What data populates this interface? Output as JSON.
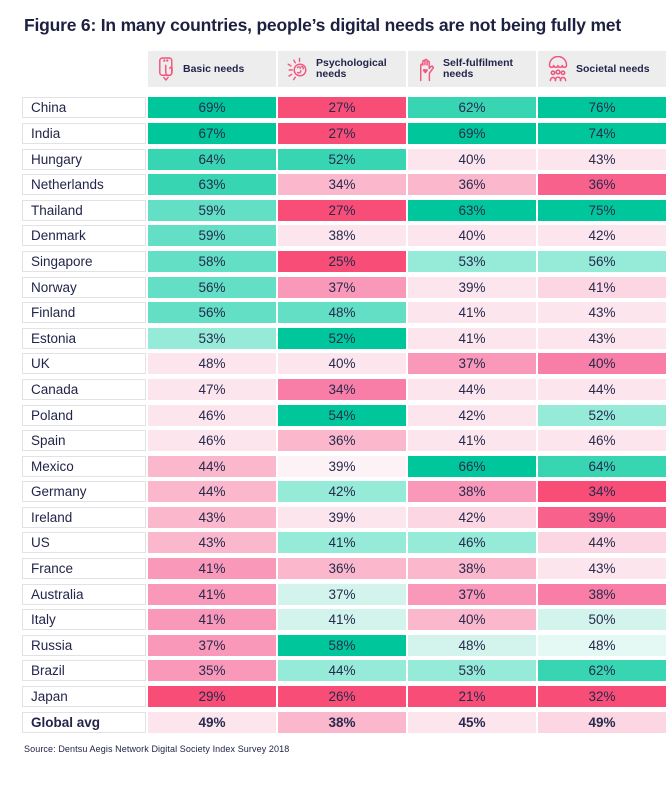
{
  "title": "Figure 6: In many countries, people’s digital needs are not being fully met",
  "source": "Source: Dentsu Aegis Network Digital Society Index Survey 2018",
  "columns": [
    {
      "id": "basic-needs",
      "label": "Basic needs",
      "icon": "phone-hand-icon"
    },
    {
      "id": "psychological-needs",
      "label": "Psychological needs",
      "icon": "brain-burst-icon"
    },
    {
      "id": "self-fulfilment-needs",
      "label": "Self-fulfilment needs",
      "icon": "hand-heart-icon"
    },
    {
      "id": "societal-needs",
      "label": "Societal needs",
      "icon": "people-group-icon"
    }
  ],
  "colors": {
    "t5": "#00c79b",
    "t4": "#38d5b3",
    "t3": "#62dfc5",
    "t2": "#95ead8",
    "t1": "#d3f4ec",
    "t0": "#e4f9f4",
    "p6": "#f74d77",
    "p5": "#f8618c",
    "p4": "#f87ea7",
    "p3": "#f998b9",
    "p2": "#fbb7cc",
    "p1": "#fcd6e2",
    "p0": "#fde5ed",
    "pw": "#fdf2f5"
  },
  "accent_pink": "#f2547e",
  "header_bg": "#ededed",
  "rows": [
    {
      "label": "China",
      "cells": [
        {
          "value": "69%",
          "color": "t5"
        },
        {
          "value": "27%",
          "color": "p6"
        },
        {
          "value": "62%",
          "color": "t4"
        },
        {
          "value": "76%",
          "color": "t5"
        }
      ]
    },
    {
      "label": "India",
      "cells": [
        {
          "value": "67%",
          "color": "t5"
        },
        {
          "value": "27%",
          "color": "p6"
        },
        {
          "value": "69%",
          "color": "t5"
        },
        {
          "value": "74%",
          "color": "t5"
        }
      ]
    },
    {
      "label": "Hungary",
      "cells": [
        {
          "value": "64%",
          "color": "t4"
        },
        {
          "value": "52%",
          "color": "t4"
        },
        {
          "value": "40%",
          "color": "p0"
        },
        {
          "value": "43%",
          "color": "p0"
        }
      ]
    },
    {
      "label": "Netherlands",
      "cells": [
        {
          "value": "63%",
          "color": "t4"
        },
        {
          "value": "34%",
          "color": "p2"
        },
        {
          "value": "36%",
          "color": "p2"
        },
        {
          "value": "36%",
          "color": "p5"
        }
      ]
    },
    {
      "label": "Thailand",
      "cells": [
        {
          "value": "59%",
          "color": "t3"
        },
        {
          "value": "27%",
          "color": "p6"
        },
        {
          "value": "63%",
          "color": "t5"
        },
        {
          "value": "75%",
          "color": "t5"
        }
      ]
    },
    {
      "label": "Denmark",
      "cells": [
        {
          "value": "59%",
          "color": "t3"
        },
        {
          "value": "38%",
          "color": "p0"
        },
        {
          "value": "40%",
          "color": "p0"
        },
        {
          "value": "42%",
          "color": "p0"
        }
      ]
    },
    {
      "label": "Singapore",
      "cells": [
        {
          "value": "58%",
          "color": "t3"
        },
        {
          "value": "25%",
          "color": "p6"
        },
        {
          "value": "53%",
          "color": "t2"
        },
        {
          "value": "56%",
          "color": "t2"
        }
      ]
    },
    {
      "label": "Norway",
      "cells": [
        {
          "value": "56%",
          "color": "t3"
        },
        {
          "value": "37%",
          "color": "p3"
        },
        {
          "value": "39%",
          "color": "p0"
        },
        {
          "value": "41%",
          "color": "p1"
        }
      ]
    },
    {
      "label": "Finland",
      "cells": [
        {
          "value": "56%",
          "color": "t3"
        },
        {
          "value": "48%",
          "color": "t3"
        },
        {
          "value": "41%",
          "color": "p0"
        },
        {
          "value": "43%",
          "color": "p0"
        }
      ]
    },
    {
      "label": "Estonia",
      "cells": [
        {
          "value": "53%",
          "color": "t2"
        },
        {
          "value": "52%",
          "color": "t5"
        },
        {
          "value": "41%",
          "color": "p0"
        },
        {
          "value": "43%",
          "color": "p0"
        }
      ]
    },
    {
      "label": "UK",
      "cells": [
        {
          "value": "48%",
          "color": "p0"
        },
        {
          "value": "40%",
          "color": "p0"
        },
        {
          "value": "37%",
          "color": "p3"
        },
        {
          "value": "40%",
          "color": "p4"
        }
      ]
    },
    {
      "label": "Canada",
      "cells": [
        {
          "value": "47%",
          "color": "p0"
        },
        {
          "value": "34%",
          "color": "p4"
        },
        {
          "value": "44%",
          "color": "p0"
        },
        {
          "value": "44%",
          "color": "p0"
        }
      ]
    },
    {
      "label": "Poland",
      "cells": [
        {
          "value": "46%",
          "color": "p0"
        },
        {
          "value": "54%",
          "color": "t5"
        },
        {
          "value": "42%",
          "color": "p0"
        },
        {
          "value": "52%",
          "color": "t2"
        }
      ]
    },
    {
      "label": "Spain",
      "cells": [
        {
          "value": "46%",
          "color": "p0"
        },
        {
          "value": "36%",
          "color": "p2"
        },
        {
          "value": "41%",
          "color": "p0"
        },
        {
          "value": "46%",
          "color": "p0"
        }
      ]
    },
    {
      "label": "Mexico",
      "cells": [
        {
          "value": "44%",
          "color": "p2"
        },
        {
          "value": "39%",
          "color": "pw"
        },
        {
          "value": "66%",
          "color": "t5"
        },
        {
          "value": "64%",
          "color": "t4"
        }
      ]
    },
    {
      "label": "Germany",
      "cells": [
        {
          "value": "44%",
          "color": "p2"
        },
        {
          "value": "42%",
          "color": "t2"
        },
        {
          "value": "38%",
          "color": "p3"
        },
        {
          "value": "34%",
          "color": "p6"
        }
      ]
    },
    {
      "label": "Ireland",
      "cells": [
        {
          "value": "43%",
          "color": "p2"
        },
        {
          "value": "39%",
          "color": "p0"
        },
        {
          "value": "42%",
          "color": "p1"
        },
        {
          "value": "39%",
          "color": "p5"
        }
      ]
    },
    {
      "label": "US",
      "cells": [
        {
          "value": "43%",
          "color": "p2"
        },
        {
          "value": "41%",
          "color": "t2"
        },
        {
          "value": "46%",
          "color": "t2"
        },
        {
          "value": "44%",
          "color": "p1"
        }
      ]
    },
    {
      "label": "France",
      "cells": [
        {
          "value": "41%",
          "color": "p3"
        },
        {
          "value": "36%",
          "color": "p2"
        },
        {
          "value": "38%",
          "color": "p2"
        },
        {
          "value": "43%",
          "color": "p0"
        }
      ]
    },
    {
      "label": "Australia",
      "cells": [
        {
          "value": "41%",
          "color": "p3"
        },
        {
          "value": "37%",
          "color": "t1"
        },
        {
          "value": "37%",
          "color": "p3"
        },
        {
          "value": "38%",
          "color": "p4"
        }
      ]
    },
    {
      "label": "Italy",
      "cells": [
        {
          "value": "41%",
          "color": "p3"
        },
        {
          "value": "41%",
          "color": "t1"
        },
        {
          "value": "40%",
          "color": "p2"
        },
        {
          "value": "50%",
          "color": "t1"
        }
      ]
    },
    {
      "label": "Russia",
      "cells": [
        {
          "value": "37%",
          "color": "p3"
        },
        {
          "value": "58%",
          "color": "t5"
        },
        {
          "value": "48%",
          "color": "t1"
        },
        {
          "value": "48%",
          "color": "t0"
        }
      ]
    },
    {
      "label": "Brazil",
      "cells": [
        {
          "value": "35%",
          "color": "p3"
        },
        {
          "value": "44%",
          "color": "t2"
        },
        {
          "value": "53%",
          "color": "t2"
        },
        {
          "value": "62%",
          "color": "t4"
        }
      ]
    },
    {
      "label": "Japan",
      "cells": [
        {
          "value": "29%",
          "color": "p6"
        },
        {
          "value": "26%",
          "color": "p6"
        },
        {
          "value": "21%",
          "color": "p6"
        },
        {
          "value": "32%",
          "color": "p6"
        }
      ]
    },
    {
      "label": "Global avg",
      "bold": true,
      "cells": [
        {
          "value": "49%",
          "color": "p0"
        },
        {
          "value": "38%",
          "color": "p2"
        },
        {
          "value": "45%",
          "color": "p0"
        },
        {
          "value": "49%",
          "color": "p1"
        }
      ]
    }
  ],
  "chart_data": {
    "type": "heatmap",
    "title": "Figure 6: In many countries, people’s digital needs are not being fully met",
    "categories": [
      "China",
      "India",
      "Hungary",
      "Netherlands",
      "Thailand",
      "Denmark",
      "Singapore",
      "Norway",
      "Finland",
      "Estonia",
      "UK",
      "Canada",
      "Poland",
      "Spain",
      "Mexico",
      "Germany",
      "Ireland",
      "US",
      "France",
      "Australia",
      "Italy",
      "Russia",
      "Brazil",
      "Japan",
      "Global avg"
    ],
    "series": [
      {
        "name": "Basic needs",
        "values": [
          69,
          67,
          64,
          63,
          59,
          59,
          58,
          56,
          56,
          53,
          48,
          47,
          46,
          46,
          44,
          44,
          43,
          43,
          41,
          41,
          41,
          37,
          35,
          29,
          49
        ]
      },
      {
        "name": "Psychological needs",
        "values": [
          27,
          27,
          52,
          34,
          27,
          38,
          25,
          37,
          48,
          52,
          40,
          34,
          54,
          36,
          39,
          42,
          39,
          41,
          36,
          37,
          41,
          58,
          44,
          26,
          38
        ]
      },
      {
        "name": "Self-fulfilment needs",
        "values": [
          62,
          69,
          40,
          36,
          63,
          40,
          53,
          39,
          41,
          41,
          37,
          44,
          42,
          41,
          66,
          38,
          42,
          46,
          38,
          37,
          40,
          48,
          53,
          21,
          45
        ]
      },
      {
        "name": "Societal needs",
        "values": [
          76,
          74,
          43,
          36,
          75,
          42,
          56,
          41,
          43,
          43,
          40,
          44,
          52,
          46,
          64,
          34,
          39,
          44,
          43,
          38,
          50,
          48,
          62,
          32,
          49
        ]
      }
    ],
    "unit": "%",
    "color_encoding": "teal shades = higher/above global average, pink shades = lower/below global average",
    "legend_position": "none",
    "source": "Source: Dentsu Aegis Network Digital Society Index Survey 2018"
  }
}
